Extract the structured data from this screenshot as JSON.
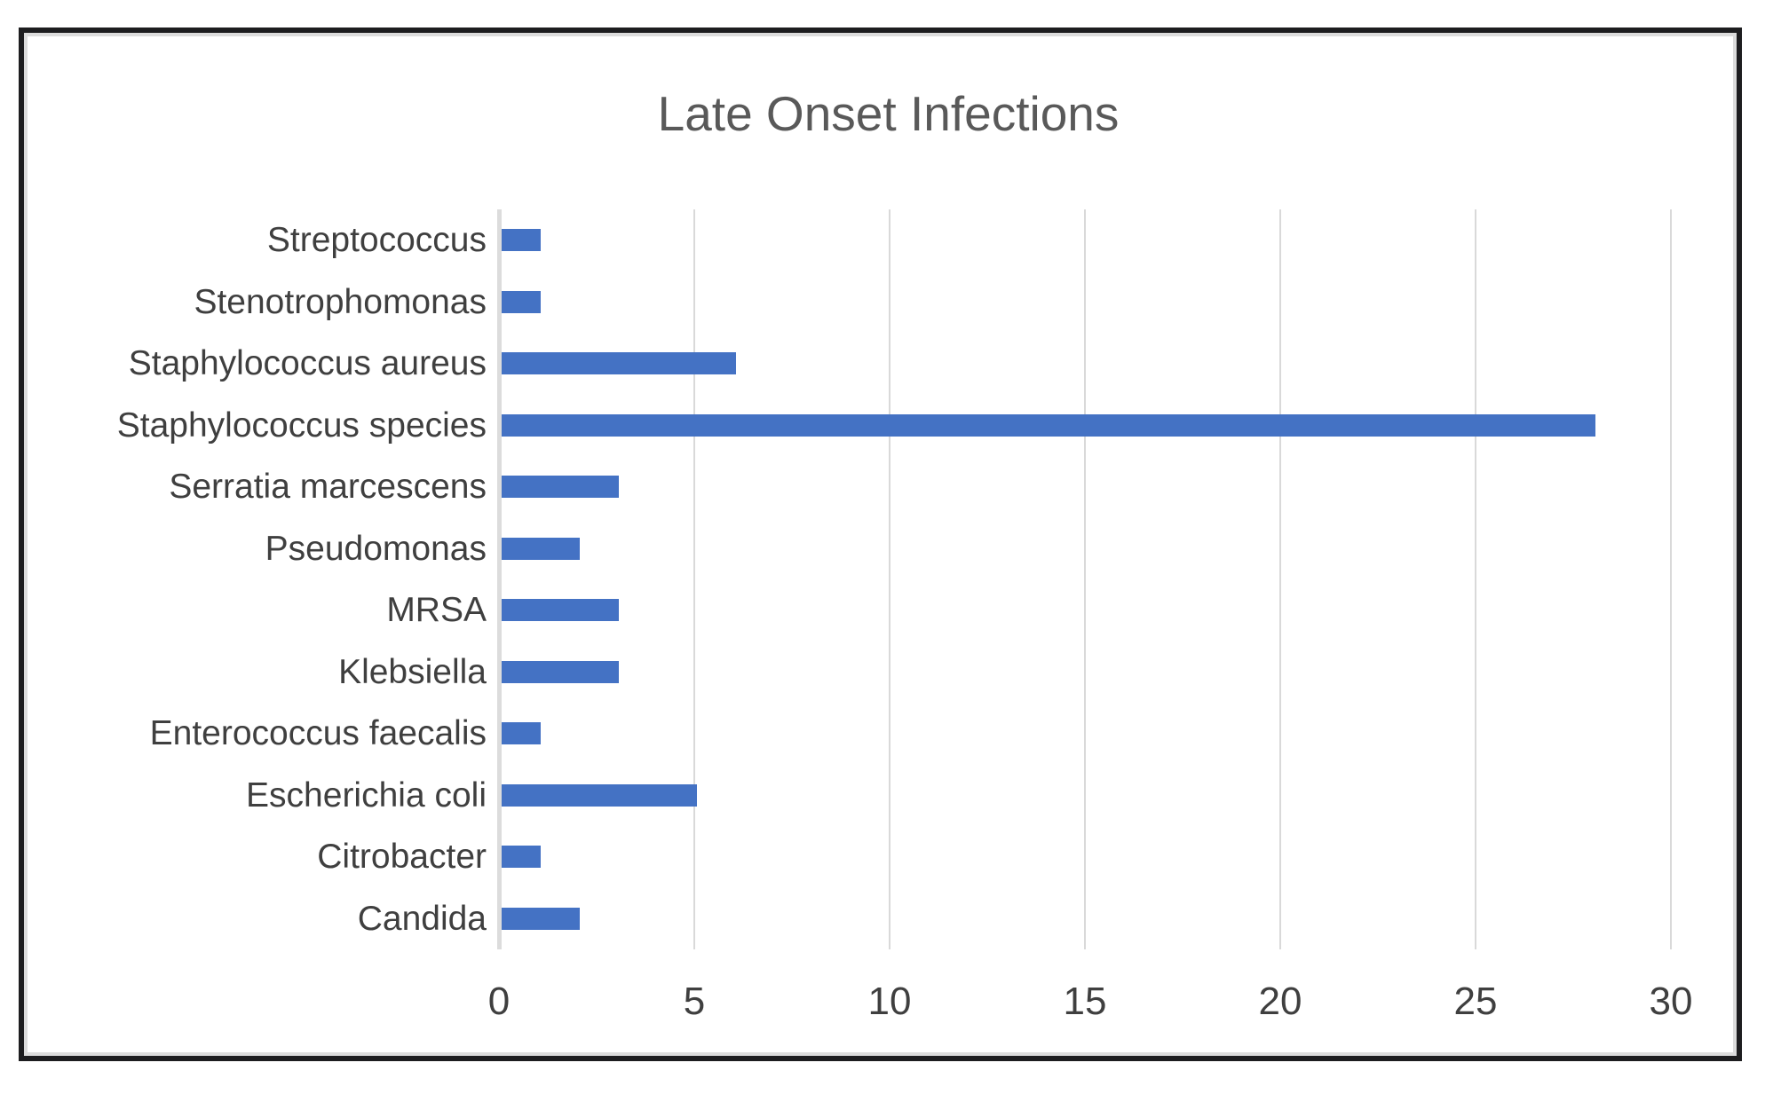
{
  "window": {
    "background_color": "#ffffff",
    "frame_border_color": "#1d1d1f",
    "frame_inner_line_color": "#dcdcdc"
  },
  "chart_data": {
    "type": "bar",
    "orientation": "horizontal",
    "title": "Late Onset Infections",
    "categories": [
      "Streptococcus",
      "Stenotrophomonas",
      "Staphylococcus aureus",
      "Staphylococcus species",
      "Serratia marcescens",
      "Pseudomonas",
      "MRSA",
      "Klebsiella",
      "Enterococcus faecalis",
      "Escherichia coli",
      "Citrobacter",
      "Candida"
    ],
    "values": [
      1,
      1,
      6,
      28,
      3,
      2,
      3,
      3,
      1,
      5,
      1,
      2
    ],
    "xlabel": "",
    "ylabel": "",
    "xlim": [
      0,
      30
    ],
    "xticks": [
      0,
      5,
      10,
      15,
      20,
      25,
      30
    ],
    "grid": "vertical-gridlines-on",
    "legend": "none",
    "bar_color": "#4472c4",
    "gridline_color": "#d9d9d9",
    "title_color": "#595959",
    "label_color": "#3f3f3f"
  }
}
